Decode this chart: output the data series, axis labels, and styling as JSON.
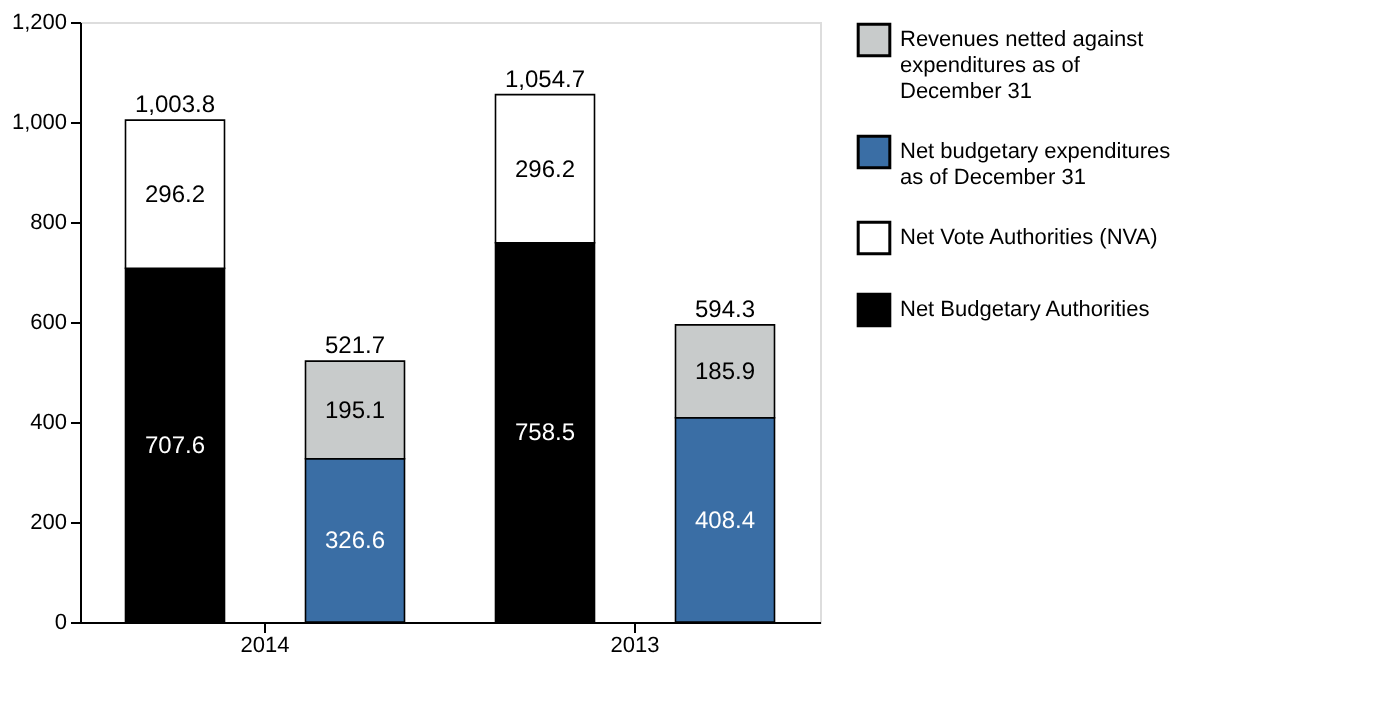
{
  "chart_data": {
    "type": "bar",
    "stacked": true,
    "categories": [
      null,
      null,
      null,
      null
    ],
    "series": [
      {
        "name": "Net Budgetary Authorities",
        "color": "#000000",
        "values": [
          707.6,
          null,
          758.5,
          null
        ]
      },
      {
        "name": "Net Vote Authorities (NVA)",
        "color": "#ffffff",
        "values": [
          296.2,
          null,
          296.2,
          null
        ]
      },
      {
        "name": "Net budgetary expenditures as of December 31",
        "color": "#3a6ea5",
        "values": [
          null,
          326.6,
          null,
          408.4
        ]
      },
      {
        "name": "Revenues netted against expenditures as of December 31",
        "color": "#c8cbcb",
        "values": [
          null,
          195.1,
          null,
          185.9
        ]
      }
    ],
    "totals": [
      "1,003.8",
      "521.7",
      "1,054.7",
      "594.3"
    ],
    "annotations": [
      "2014",
      "2013"
    ],
    "data_labels": true,
    "ylim": [
      0,
      1200
    ],
    "yticks": [
      0,
      200,
      400,
      600,
      800,
      {
        "value": 1000,
        "label": "1,000"
      },
      {
        "value": 1200,
        "label": "1,200"
      }
    ],
    "grid": false,
    "legend": "top right"
  }
}
